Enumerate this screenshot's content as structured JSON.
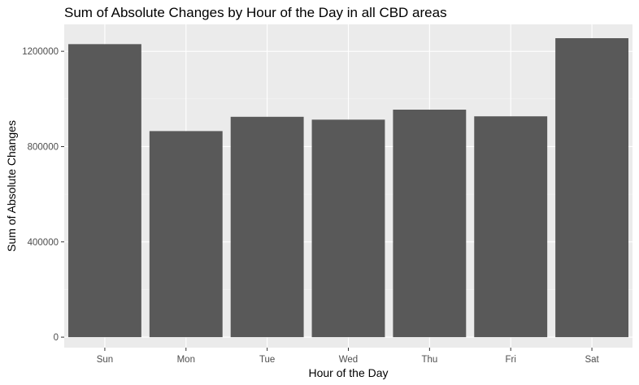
{
  "chart_data": {
    "type": "bar",
    "title": "Sum of Absolute Changes by Hour of the Day in all CBD areas",
    "xlabel": "Hour of the Day",
    "ylabel": "Sum of Absolute Changes",
    "categories": [
      "Sun",
      "Mon",
      "Tue",
      "Wed",
      "Thu",
      "Fri",
      "Sat"
    ],
    "values": [
      1230000,
      865000,
      925000,
      913000,
      955000,
      927000,
      1255000
    ],
    "y_ticks": [
      0,
      400000,
      800000,
      1200000
    ],
    "y_tick_labels": [
      "0",
      "400000",
      "800000",
      "1200000"
    ],
    "ylim": [
      -44000,
      1313000
    ],
    "grid": true,
    "colors": {
      "bar": "#595959",
      "panel": "#ebebeb",
      "grid_major": "#ffffff",
      "grid_minor": "#f5f5f5",
      "tick_text": "#4d4d4d",
      "tick_mark": "#333333"
    }
  }
}
